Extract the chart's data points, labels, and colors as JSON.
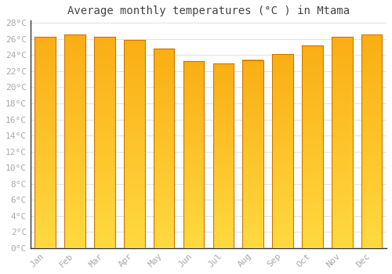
{
  "title": "Average monthly temperatures (°C ) in Mtama",
  "months": [
    "Jan",
    "Feb",
    "Mar",
    "Apr",
    "May",
    "Jun",
    "Jul",
    "Aug",
    "Sep",
    "Oct",
    "Nov",
    "Dec"
  ],
  "values": [
    26.3,
    26.6,
    26.3,
    25.9,
    24.8,
    23.3,
    23.0,
    23.4,
    24.1,
    25.2,
    26.3,
    26.6
  ],
  "bar_color_center": "#FFBB00",
  "bar_color_edge": "#F08800",
  "bar_color_bottom": "#FFD040",
  "background_color": "#ffffff",
  "grid_color": "#dddddd",
  "ylim_min": 0,
  "ylim_max": 28,
  "ytick_step": 2,
  "title_fontsize": 10,
  "tick_fontsize": 8,
  "tick_color": "#aaaaaa",
  "spine_color": "#333333",
  "font_family": "monospace",
  "bar_width": 0.7
}
